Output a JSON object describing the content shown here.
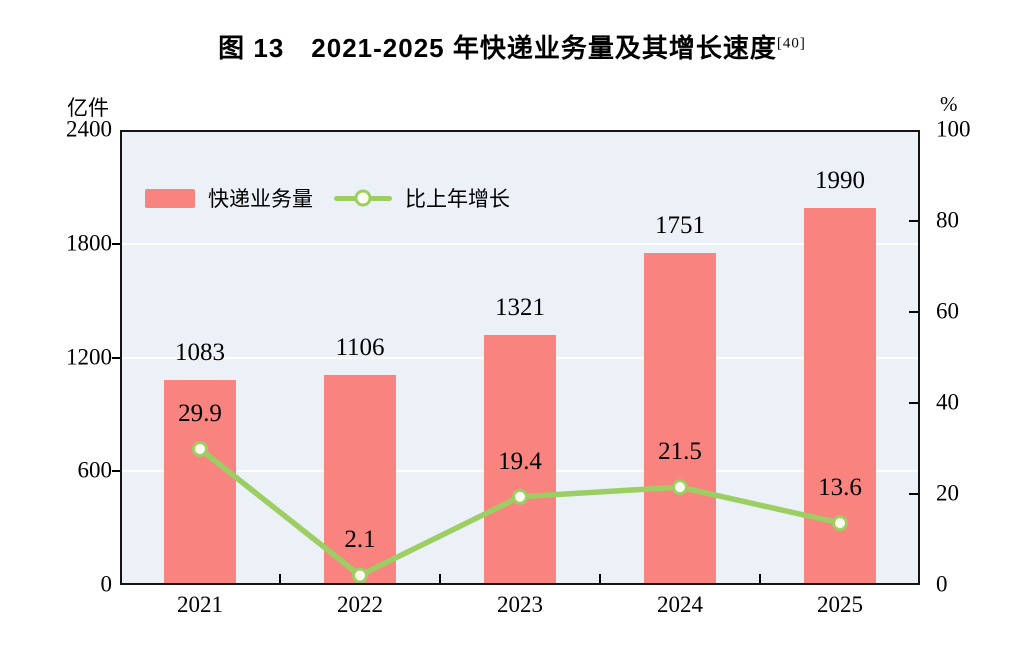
{
  "title": {
    "text": "图 13　2021-2025 年快递业务量及其增长速度",
    "superscript": "[40]"
  },
  "chart_data": {
    "type": "combo_bar_line",
    "categories": [
      "2021",
      "2022",
      "2023",
      "2024",
      "2025"
    ],
    "series": [
      {
        "name": "快递业务量",
        "type": "bar",
        "axis": "left",
        "values": [
          1083,
          1106,
          1321,
          1751,
          1990
        ],
        "color": "#F9837F"
      },
      {
        "name": "比上年增长",
        "type": "line",
        "axis": "right",
        "values": [
          29.9,
          2.1,
          19.4,
          21.5,
          13.6
        ],
        "color": "#9CCE63",
        "marker_fill": "#FDFDF0"
      }
    ],
    "left_axis": {
      "unit": "亿件",
      "min": 0,
      "max": 2400,
      "ticks": [
        0,
        600,
        1200,
        1800,
        2400
      ]
    },
    "right_axis": {
      "unit": "%",
      "min": 0,
      "max": 100,
      "ticks": [
        0,
        20,
        40,
        60,
        80,
        100
      ]
    },
    "plot": {
      "background": "#ECF1F8",
      "gridline_color": "#FFFFFF",
      "gridline_values_left_axis": [
        600,
        1200,
        1800
      ],
      "border_color": "#141414"
    },
    "legend": [
      "快递业务量",
      "比上年增长"
    ],
    "label_color": "#000000"
  }
}
